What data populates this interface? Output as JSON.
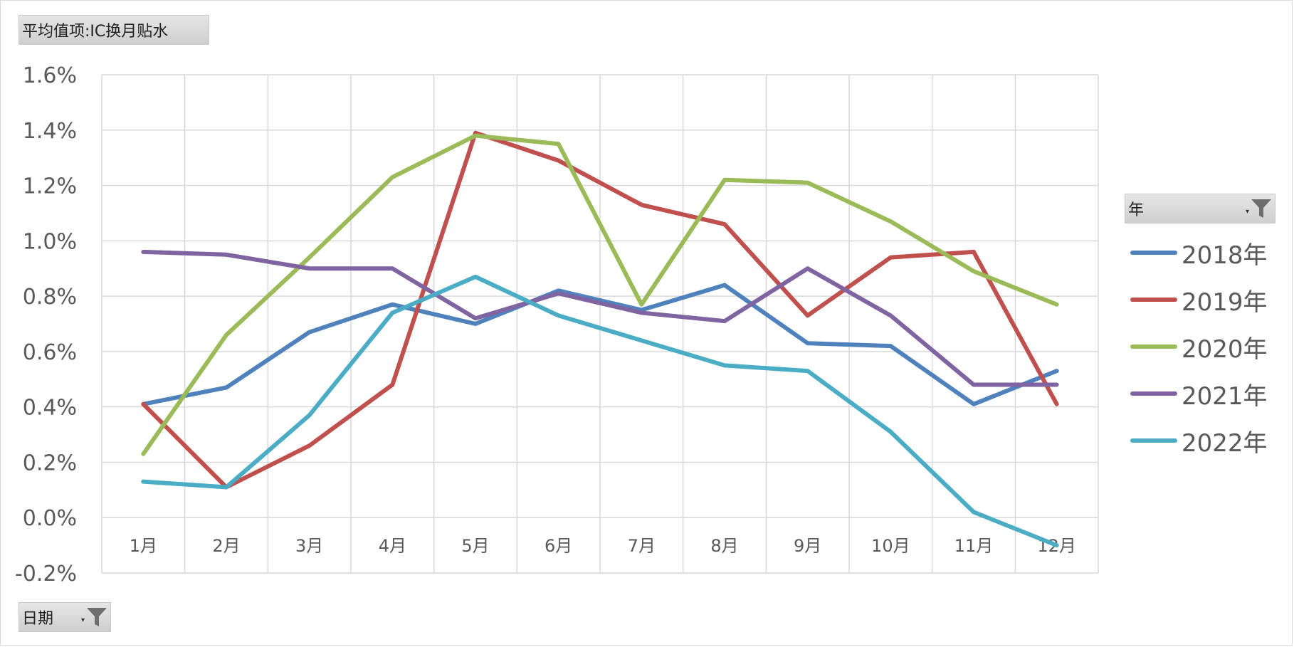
{
  "value_field_button": {
    "label": "平均值项:IC换月贴水"
  },
  "date_field_button": {
    "label": "日期"
  },
  "year_field_button": {
    "label": "年"
  },
  "colors": {
    "2018年": "#4f81bd",
    "2019年": "#c0504d",
    "2020年": "#9bbb59",
    "2021年": "#8064a2",
    "2022年": "#4bacc6"
  },
  "chart_data": {
    "type": "line",
    "title": "",
    "xlabel": "",
    "ylabel": "",
    "categories": [
      "1月",
      "2月",
      "3月",
      "4月",
      "5月",
      "6月",
      "7月",
      "8月",
      "9月",
      "10月",
      "11月",
      "12月"
    ],
    "ylim": [
      -0.2,
      1.6
    ],
    "yticks": [
      "1.6%",
      "1.4%",
      "1.2%",
      "1.0%",
      "0.8%",
      "0.6%",
      "0.4%",
      "0.2%",
      "0.0%",
      "-0.2%"
    ],
    "ytick_values": [
      1.6,
      1.4,
      1.2,
      1.0,
      0.8,
      0.6,
      0.4,
      0.2,
      0.0,
      -0.2
    ],
    "y_unit": "%",
    "grid": true,
    "legend_position": "right",
    "series": [
      {
        "name": "2018年",
        "values": [
          0.41,
          0.47,
          0.67,
          0.77,
          0.7,
          0.82,
          0.75,
          0.84,
          0.63,
          0.62,
          0.41,
          0.53
        ]
      },
      {
        "name": "2019年",
        "values": [
          0.41,
          0.11,
          0.26,
          0.48,
          1.39,
          1.29,
          1.13,
          1.06,
          0.73,
          0.94,
          0.96,
          0.41
        ]
      },
      {
        "name": "2020年",
        "values": [
          0.23,
          0.66,
          0.94,
          1.23,
          1.38,
          1.35,
          0.77,
          1.22,
          1.21,
          1.07,
          0.89,
          0.77
        ]
      },
      {
        "name": "2021年",
        "values": [
          0.96,
          0.95,
          0.9,
          0.9,
          0.72,
          0.81,
          0.74,
          0.71,
          0.9,
          0.73,
          0.48,
          0.48
        ]
      },
      {
        "name": "2022年",
        "values": [
          0.13,
          0.11,
          0.37,
          0.74,
          0.87,
          0.73,
          0.64,
          0.55,
          0.53,
          0.31,
          0.02,
          -0.1
        ]
      }
    ]
  }
}
